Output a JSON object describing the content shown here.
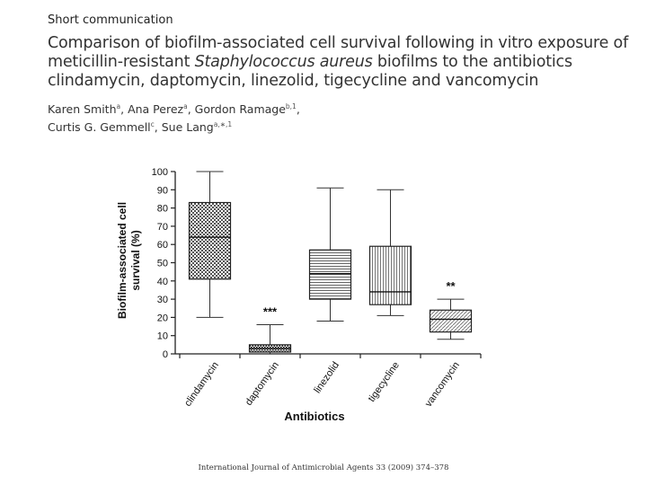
{
  "section_label": "Short communication",
  "title": {
    "part1": "Comparison of biofilm-associated cell survival following in vitro exposure of meticillin-resistant ",
    "species": "Staphylococcus aureus",
    "part2": " biofilms to the antibiotics clindamycin, daptomycin, linezolid, tigecycline and vancomycin"
  },
  "authors": [
    {
      "name": "Karen Smith",
      "sup": "a"
    },
    {
      "name": "Ana Perez",
      "sup": "a"
    },
    {
      "name": "Gordon Ramage",
      "sup": "b,1"
    },
    {
      "name": "Curtis G. Gemmell",
      "sup": "c"
    },
    {
      "name": "Sue Lang",
      "sup": "a,∗,1"
    }
  ],
  "footer": "International Journal of Antimicrobial Agents 33 (2009) 374–378",
  "chart_data": {
    "type": "boxplot",
    "title": "",
    "xlabel": "Antibiotics",
    "ylabel_line1": "Biofilm-associated cell",
    "ylabel_line2": "survival (%)",
    "ylim": [
      0,
      100
    ],
    "yticks": [
      0,
      10,
      20,
      30,
      40,
      50,
      60,
      70,
      80,
      90,
      100
    ],
    "categories": [
      "clindamycin",
      "daptomycin",
      "linezolid",
      "tigecycline",
      "vancomycin"
    ],
    "boxes": [
      {
        "name": "clindamycin",
        "min": 20,
        "q1": 41,
        "median": 64,
        "q3": 83,
        "max": 100,
        "annotation": ""
      },
      {
        "name": "daptomycin",
        "min": 0,
        "q1": 1,
        "median": 3,
        "q3": 5,
        "max": 16,
        "annotation": "***"
      },
      {
        "name": "linezolid",
        "min": 18,
        "q1": 30,
        "median": 44,
        "q3": 57,
        "max": 91,
        "annotation": ""
      },
      {
        "name": "tigecycline",
        "min": 21,
        "q1": 27,
        "median": 34,
        "q3": 59,
        "max": 90,
        "annotation": ""
      },
      {
        "name": "vancomycin",
        "min": 8,
        "q1": 12,
        "median": 19,
        "q3": 24,
        "max": 30,
        "annotation": "**"
      }
    ]
  }
}
